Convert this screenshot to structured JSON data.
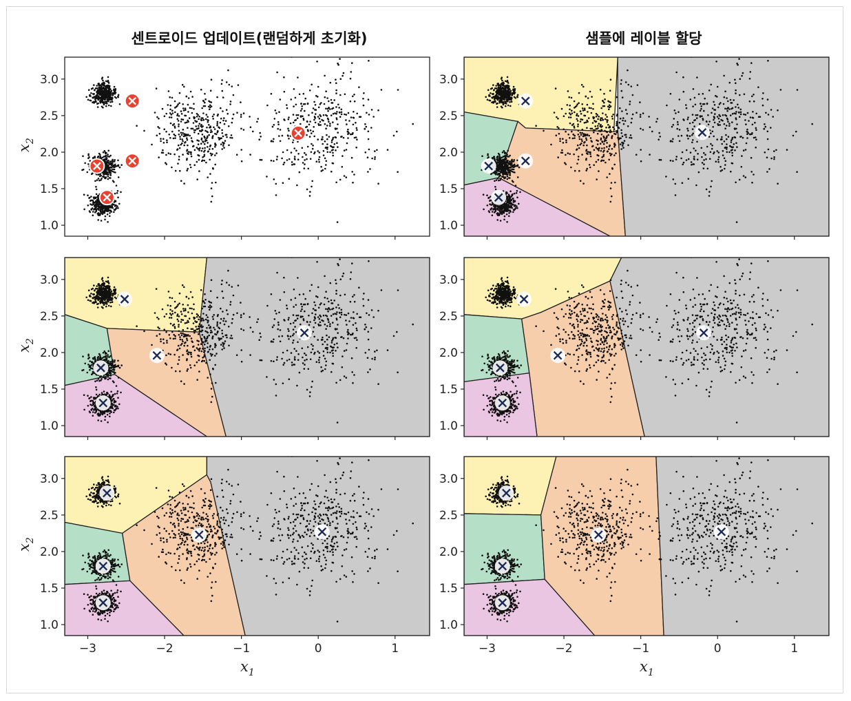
{
  "columns": [
    {
      "title": "센트로이드 업데이트(랜덤하게 초기화)"
    },
    {
      "title": "샘플에 레이블 할당"
    }
  ],
  "axes": {
    "xlabel_main": "x",
    "xlabel_sub": "1",
    "ylabel_main": "x",
    "ylabel_sub": "2",
    "xlim": [
      -3.3,
      1.45
    ],
    "ylim": [
      0.85,
      3.3
    ],
    "xticks": [
      -3,
      -2,
      -1,
      0,
      1
    ],
    "xtick_labels": [
      "−3",
      "−2",
      "−1",
      "0",
      "1"
    ],
    "yticks": [
      1.0,
      1.5,
      2.0,
      2.5,
      3.0
    ],
    "ytick_labels": [
      "1.0",
      "1.5",
      "2.0",
      "2.5",
      "3.0"
    ]
  },
  "colors": {
    "region_yellow": "#fdf2b4",
    "region_green": "#b5dfc7",
    "region_orange": "#f7ceac",
    "region_pink": "#ebc6e2",
    "region_gray": "#cbcbcb",
    "points": "#111111",
    "initial_centroid": "#e8412f",
    "centroid_x": "#1a2a55"
  },
  "clusters": [
    {
      "center": [
        -2.8,
        2.8
      ],
      "spread": 0.075,
      "count": 400
    },
    {
      "center": [
        -2.8,
        1.8
      ],
      "spread": 0.085,
      "count": 400
    },
    {
      "center": [
        -2.8,
        1.3
      ],
      "spread": 0.085,
      "count": 400
    },
    {
      "center": [
        -1.55,
        2.3
      ],
      "spread": 0.28,
      "count": 400
    },
    {
      "center": [
        0.0,
        2.3
      ],
      "spread": 0.38,
      "count": 400
    }
  ],
  "chart_data": [
    {
      "type": "scatter",
      "panel": "row1-left",
      "title": "센트로이드 업데이트(랜덤하게 초기화)",
      "xlabel": "",
      "ylabel": "x2",
      "centroids": [
        [
          -2.42,
          2.7
        ],
        [
          -2.88,
          1.81
        ],
        [
          -2.42,
          1.88
        ],
        [
          -2.75,
          1.38
        ],
        [
          -0.26,
          2.26
        ]
      ],
      "regions": false,
      "initial": true
    },
    {
      "type": "scatter",
      "panel": "row1-right",
      "title": "샘플에 레이블 할당",
      "xlabel": "",
      "ylabel": "",
      "centroids": [
        [
          -2.5,
          2.7
        ],
        [
          -2.98,
          1.81
        ],
        [
          -2.5,
          1.88
        ],
        [
          -2.85,
          1.38
        ],
        [
          -0.2,
          2.27
        ]
      ],
      "regions": true,
      "initial": false
    },
    {
      "type": "scatter",
      "panel": "row2-left",
      "title": "",
      "xlabel": "",
      "ylabel": "x2",
      "centroids": [
        [
          -2.52,
          2.73
        ],
        [
          -2.1,
          1.96
        ],
        [
          -2.83,
          1.79
        ],
        [
          -2.8,
          1.31
        ],
        [
          -0.18,
          2.27
        ]
      ],
      "regions": true,
      "initial": false
    },
    {
      "type": "scatter",
      "panel": "row2-right",
      "title": "",
      "xlabel": "",
      "ylabel": "",
      "centroids": [
        [
          -2.52,
          2.73
        ],
        [
          -2.08,
          1.96
        ],
        [
          -2.83,
          1.79
        ],
        [
          -2.8,
          1.31
        ],
        [
          -0.18,
          2.27
        ]
      ],
      "regions": true,
      "initial": false
    },
    {
      "type": "scatter",
      "panel": "row3-left",
      "title": "",
      "xlabel": "x1",
      "ylabel": "x2",
      "centroids": [
        [
          -2.75,
          2.8
        ],
        [
          -1.55,
          2.23
        ],
        [
          -2.8,
          1.8
        ],
        [
          -2.8,
          1.3
        ],
        [
          0.05,
          2.27
        ]
      ],
      "regions": true,
      "initial": false
    },
    {
      "type": "scatter",
      "panel": "row3-right",
      "title": "",
      "xlabel": "x1",
      "ylabel": "",
      "centroids": [
        [
          -2.75,
          2.8
        ],
        [
          -1.55,
          2.23
        ],
        [
          -2.8,
          1.8
        ],
        [
          -2.8,
          1.3
        ],
        [
          0.05,
          2.27
        ]
      ],
      "regions": true,
      "initial": false
    }
  ],
  "regions": {
    "row1-right": [
      {
        "color": "yellow",
        "poly": [
          [
            -3.3,
            3.3
          ],
          [
            -1.3,
            3.3
          ],
          [
            -1.35,
            2.28
          ],
          [
            -2.5,
            2.33
          ],
          [
            -2.6,
            2.42
          ],
          [
            -3.3,
            2.55
          ]
        ]
      },
      {
        "color": "green",
        "poly": [
          [
            -3.3,
            2.55
          ],
          [
            -2.6,
            2.42
          ],
          [
            -2.85,
            1.65
          ],
          [
            -3.3,
            1.55
          ]
        ]
      },
      {
        "color": "orange",
        "poly": [
          [
            -2.6,
            2.42
          ],
          [
            -2.5,
            2.33
          ],
          [
            -1.35,
            2.28
          ],
          [
            -1.3,
            2.3
          ],
          [
            -1.2,
            0.85
          ],
          [
            -1.4,
            0.85
          ],
          [
            -2.85,
            1.65
          ]
        ]
      },
      {
        "color": "pink",
        "poly": [
          [
            -3.3,
            1.55
          ],
          [
            -2.85,
            1.65
          ],
          [
            -1.4,
            0.85
          ],
          [
            -3.3,
            0.85
          ]
        ]
      },
      {
        "color": "gray",
        "poly": [
          [
            -1.3,
            3.3
          ],
          [
            1.45,
            3.3
          ],
          [
            1.45,
            0.85
          ],
          [
            -1.2,
            0.85
          ],
          [
            -1.3,
            2.3
          ]
        ]
      }
    ],
    "row2-left": [
      {
        "color": "yellow",
        "poly": [
          [
            -3.3,
            3.3
          ],
          [
            -1.45,
            3.3
          ],
          [
            -1.55,
            2.28
          ],
          [
            -2.75,
            2.33
          ],
          [
            -3.3,
            2.52
          ]
        ]
      },
      {
        "color": "green",
        "poly": [
          [
            -3.3,
            2.52
          ],
          [
            -2.75,
            2.33
          ],
          [
            -2.65,
            1.7
          ],
          [
            -3.3,
            1.55
          ]
        ]
      },
      {
        "color": "orange",
        "poly": [
          [
            -2.75,
            2.33
          ],
          [
            -1.55,
            2.28
          ],
          [
            -1.2,
            0.85
          ],
          [
            -1.45,
            0.85
          ],
          [
            -2.65,
            1.7
          ]
        ]
      },
      {
        "color": "pink",
        "poly": [
          [
            -3.3,
            1.55
          ],
          [
            -2.65,
            1.7
          ],
          [
            -1.45,
            0.85
          ],
          [
            -3.3,
            0.85
          ]
        ]
      },
      {
        "color": "gray",
        "poly": [
          [
            -1.45,
            3.3
          ],
          [
            1.45,
            3.3
          ],
          [
            1.45,
            0.85
          ],
          [
            -1.2,
            0.85
          ],
          [
            -1.55,
            2.28
          ]
        ]
      }
    ],
    "row2-right": [
      {
        "color": "yellow",
        "poly": [
          [
            -3.3,
            3.3
          ],
          [
            -1.25,
            3.3
          ],
          [
            -1.4,
            2.98
          ],
          [
            -2.3,
            2.55
          ],
          [
            -2.55,
            2.46
          ],
          [
            -3.3,
            2.52
          ]
        ]
      },
      {
        "color": "green",
        "poly": [
          [
            -3.3,
            2.52
          ],
          [
            -2.55,
            2.46
          ],
          [
            -2.45,
            1.72
          ],
          [
            -3.3,
            1.6
          ]
        ]
      },
      {
        "color": "orange",
        "poly": [
          [
            -2.55,
            2.46
          ],
          [
            -2.3,
            2.55
          ],
          [
            -1.4,
            2.98
          ],
          [
            -0.95,
            0.85
          ],
          [
            -2.35,
            0.85
          ],
          [
            -2.45,
            1.72
          ]
        ]
      },
      {
        "color": "pink",
        "poly": [
          [
            -3.3,
            1.6
          ],
          [
            -2.45,
            1.72
          ],
          [
            -2.35,
            0.85
          ],
          [
            -3.3,
            0.85
          ]
        ]
      },
      {
        "color": "gray",
        "poly": [
          [
            -1.25,
            3.3
          ],
          [
            1.45,
            3.3
          ],
          [
            1.45,
            0.85
          ],
          [
            -0.95,
            0.85
          ],
          [
            -1.4,
            2.98
          ]
        ]
      }
    ],
    "row3-left": [
      {
        "color": "yellow",
        "poly": [
          [
            -3.3,
            3.3
          ],
          [
            -1.45,
            3.3
          ],
          [
            -1.45,
            3.05
          ],
          [
            -2.55,
            2.25
          ],
          [
            -3.3,
            2.4
          ]
        ]
      },
      {
        "color": "green",
        "poly": [
          [
            -3.3,
            2.4
          ],
          [
            -2.55,
            2.25
          ],
          [
            -2.45,
            1.6
          ],
          [
            -3.3,
            1.55
          ]
        ]
      },
      {
        "color": "orange",
        "poly": [
          [
            -2.55,
            2.25
          ],
          [
            -1.45,
            3.05
          ],
          [
            -1.4,
            2.95
          ],
          [
            -0.95,
            0.85
          ],
          [
            -1.75,
            0.85
          ],
          [
            -2.45,
            1.6
          ]
        ]
      },
      {
        "color": "pink",
        "poly": [
          [
            -3.3,
            1.55
          ],
          [
            -2.45,
            1.6
          ],
          [
            -1.75,
            0.85
          ],
          [
            -3.3,
            0.85
          ]
        ]
      },
      {
        "color": "gray",
        "poly": [
          [
            -1.45,
            3.3
          ],
          [
            1.45,
            3.3
          ],
          [
            1.45,
            0.85
          ],
          [
            -0.95,
            0.85
          ],
          [
            -1.4,
            2.95
          ],
          [
            -1.45,
            3.05
          ]
        ]
      }
    ],
    "row3-right": [
      {
        "color": "yellow",
        "poly": [
          [
            -3.3,
            3.3
          ],
          [
            -2.1,
            3.3
          ],
          [
            -2.3,
            2.5
          ],
          [
            -3.3,
            2.52
          ]
        ]
      },
      {
        "color": "green",
        "poly": [
          [
            -3.3,
            2.52
          ],
          [
            -2.3,
            2.5
          ],
          [
            -2.25,
            1.62
          ],
          [
            -3.3,
            1.55
          ]
        ]
      },
      {
        "color": "orange",
        "poly": [
          [
            -2.3,
            2.5
          ],
          [
            -2.1,
            3.3
          ],
          [
            -0.8,
            3.3
          ],
          [
            -0.7,
            0.85
          ],
          [
            -1.6,
            0.85
          ],
          [
            -2.25,
            1.62
          ]
        ]
      },
      {
        "color": "pink",
        "poly": [
          [
            -3.3,
            1.55
          ],
          [
            -2.25,
            1.62
          ],
          [
            -1.6,
            0.85
          ],
          [
            -3.3,
            0.85
          ]
        ]
      },
      {
        "color": "gray",
        "poly": [
          [
            -0.8,
            3.3
          ],
          [
            1.45,
            3.3
          ],
          [
            1.45,
            0.85
          ],
          [
            -0.7,
            0.85
          ]
        ]
      }
    ]
  }
}
